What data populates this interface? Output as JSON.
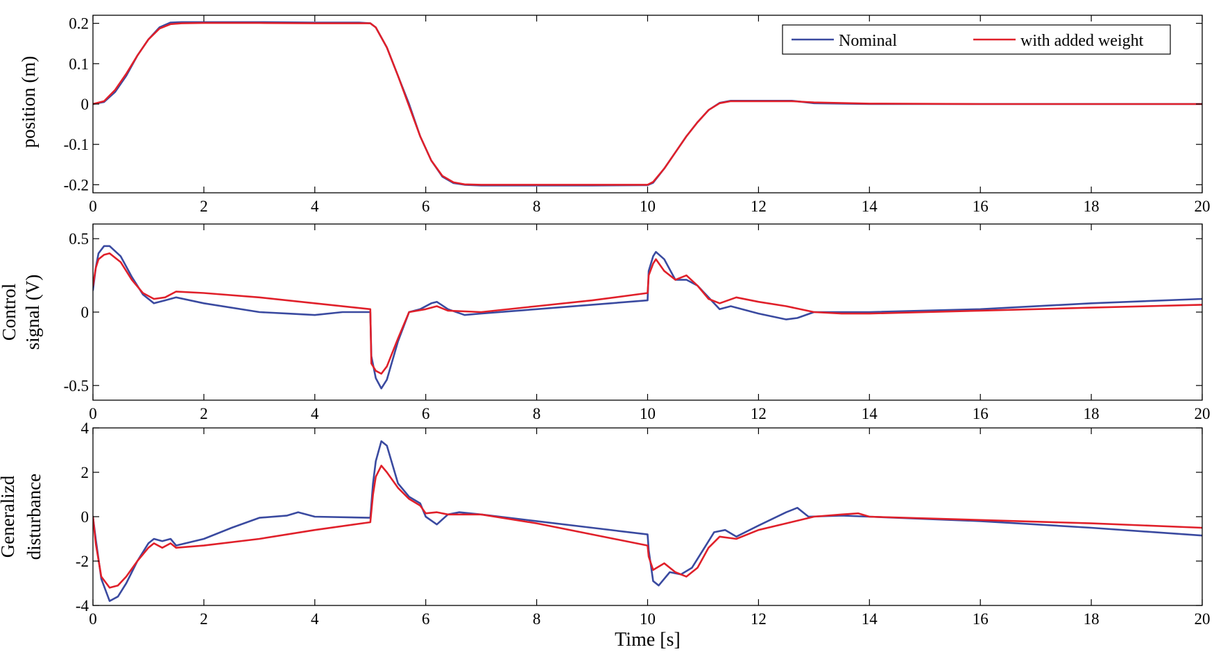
{
  "chart_data": [
    {
      "type": "line",
      "ylabel": [
        "position (m)"
      ],
      "xlabel": "",
      "xlim": [
        0,
        20
      ],
      "ylim": [
        -0.22,
        0.22
      ],
      "xticks": [
        0,
        2,
        4,
        6,
        8,
        10,
        12,
        14,
        16,
        18,
        20
      ],
      "yticks": [
        -0.2,
        -0.1,
        0,
        0.1,
        0.2
      ],
      "ytick_labels": [
        "-0.2",
        "-0.1",
        "0",
        "0.1",
        "0.2"
      ],
      "grid": false,
      "legend": {
        "placement": "top-right",
        "entries": [
          "Nominal",
          "with added weight"
        ]
      },
      "series": [
        {
          "name": "Nominal",
          "color": "#3a4aa0",
          "x": [
            0,
            0.2,
            0.4,
            0.6,
            0.8,
            1.0,
            1.2,
            1.4,
            1.6,
            2.0,
            3.0,
            4.0,
            4.8,
            5.0,
            5.1,
            5.3,
            5.5,
            5.7,
            5.9,
            6.1,
            6.3,
            6.5,
            6.7,
            7.0,
            8.0,
            9.0,
            10.0,
            10.1,
            10.3,
            10.5,
            10.7,
            10.9,
            11.1,
            11.3,
            11.5,
            11.7,
            12.0,
            12.6,
            13.0,
            14.0,
            16.0,
            18.0,
            20.0
          ],
          "y": [
            0.0,
            0.005,
            0.03,
            0.07,
            0.12,
            0.16,
            0.19,
            0.202,
            0.203,
            0.203,
            0.203,
            0.202,
            0.202,
            0.2,
            0.19,
            0.14,
            0.07,
            0.0,
            -0.08,
            -0.14,
            -0.18,
            -0.196,
            -0.2,
            -0.202,
            -0.202,
            -0.202,
            -0.201,
            -0.195,
            -0.16,
            -0.12,
            -0.08,
            -0.045,
            -0.015,
            0.003,
            0.008,
            0.008,
            0.008,
            0.008,
            0.002,
            0.0,
            0.0,
            0.0,
            0.0
          ]
        },
        {
          "name": "with added weight",
          "color": "#e0202a",
          "x": [
            0,
            0.2,
            0.4,
            0.6,
            0.8,
            1.0,
            1.2,
            1.4,
            1.6,
            2.0,
            3.0,
            4.0,
            4.8,
            5.0,
            5.1,
            5.3,
            5.5,
            5.7,
            5.9,
            6.1,
            6.3,
            6.5,
            6.7,
            7.0,
            8.0,
            9.0,
            10.0,
            10.1,
            10.3,
            10.5,
            10.7,
            10.9,
            11.1,
            11.3,
            11.5,
            11.7,
            12.0,
            12.6,
            13.0,
            14.0,
            16.0,
            18.0,
            20.0
          ],
          "y": [
            0.0,
            0.007,
            0.035,
            0.075,
            0.12,
            0.16,
            0.187,
            0.198,
            0.2,
            0.201,
            0.201,
            0.2,
            0.2,
            0.2,
            0.19,
            0.14,
            0.07,
            -0.005,
            -0.08,
            -0.14,
            -0.178,
            -0.194,
            -0.199,
            -0.2,
            -0.2,
            -0.2,
            -0.2,
            -0.193,
            -0.16,
            -0.12,
            -0.08,
            -0.045,
            -0.015,
            0.002,
            0.007,
            0.007,
            0.007,
            0.007,
            0.004,
            0.001,
            0.0,
            0.0,
            0.0
          ]
        }
      ]
    },
    {
      "type": "line",
      "ylabel": [
        "Control",
        "signal (V)"
      ],
      "xlabel": "",
      "xlim": [
        0,
        20
      ],
      "ylim": [
        -0.6,
        0.6
      ],
      "xticks": [
        0,
        2,
        4,
        6,
        8,
        10,
        12,
        14,
        16,
        18,
        20
      ],
      "yticks": [
        -0.5,
        0,
        0.5
      ],
      "ytick_labels": [
        "-0.5",
        "0",
        "0.5"
      ],
      "grid": false,
      "series": [
        {
          "name": "Nominal",
          "color": "#3a4aa0",
          "x": [
            0,
            0.05,
            0.1,
            0.2,
            0.3,
            0.5,
            0.7,
            0.9,
            1.1,
            1.3,
            1.5,
            2.0,
            3.0,
            3.5,
            4.0,
            4.5,
            5.0,
            5.02,
            5.1,
            5.2,
            5.3,
            5.5,
            5.7,
            5.9,
            6.1,
            6.2,
            6.4,
            6.7,
            7.0,
            8.0,
            9.0,
            10.0,
            10.02,
            10.1,
            10.15,
            10.3,
            10.5,
            10.7,
            10.9,
            11.1,
            11.3,
            11.5,
            12.0,
            12.5,
            12.7,
            13.0,
            14.0,
            16.0,
            18.0,
            20.0
          ],
          "y": [
            0.15,
            0.3,
            0.4,
            0.45,
            0.45,
            0.38,
            0.24,
            0.12,
            0.06,
            0.08,
            0.1,
            0.06,
            0.0,
            -0.01,
            -0.02,
            0.0,
            0.0,
            -0.3,
            -0.45,
            -0.52,
            -0.46,
            -0.2,
            0.0,
            0.02,
            0.06,
            0.07,
            0.02,
            -0.02,
            -0.01,
            0.02,
            0.05,
            0.08,
            0.28,
            0.38,
            0.41,
            0.36,
            0.22,
            0.22,
            0.18,
            0.1,
            0.02,
            0.04,
            -0.01,
            -0.05,
            -0.04,
            0.0,
            0.0,
            0.02,
            0.06,
            0.09
          ]
        },
        {
          "name": "with added weight",
          "color": "#e0202a",
          "x": [
            0,
            0.05,
            0.1,
            0.2,
            0.3,
            0.5,
            0.7,
            0.9,
            1.1,
            1.3,
            1.5,
            2.0,
            3.0,
            4.0,
            5.0,
            5.02,
            5.1,
            5.2,
            5.3,
            5.5,
            5.7,
            6.0,
            6.2,
            6.4,
            7.0,
            8.0,
            9.0,
            10.0,
            10.02,
            10.1,
            10.15,
            10.3,
            10.5,
            10.7,
            10.9,
            11.1,
            11.3,
            11.6,
            12.0,
            12.5,
            13.0,
            13.5,
            14.0,
            16.0,
            18.0,
            20.0
          ],
          "y": [
            0.18,
            0.3,
            0.36,
            0.39,
            0.4,
            0.34,
            0.22,
            0.13,
            0.09,
            0.1,
            0.14,
            0.13,
            0.1,
            0.06,
            0.02,
            -0.35,
            -0.4,
            -0.42,
            -0.37,
            -0.18,
            0.0,
            0.02,
            0.04,
            0.01,
            0.0,
            0.04,
            0.08,
            0.13,
            0.25,
            0.33,
            0.36,
            0.28,
            0.22,
            0.25,
            0.18,
            0.09,
            0.06,
            0.1,
            0.07,
            0.04,
            0.0,
            -0.01,
            -0.01,
            0.01,
            0.03,
            0.05
          ]
        }
      ]
    },
    {
      "type": "line",
      "ylabel": [
        "Generalizd",
        "disturbance"
      ],
      "xlabel": "Time [s]",
      "xlim": [
        0,
        20
      ],
      "ylim": [
        -4,
        4
      ],
      "xticks": [
        0,
        2,
        4,
        6,
        8,
        10,
        12,
        14,
        16,
        18,
        20
      ],
      "yticks": [
        -4,
        -2,
        0,
        2,
        4
      ],
      "ytick_labels": [
        "-4",
        "-2",
        "0",
        "2",
        "4"
      ],
      "grid": false,
      "series": [
        {
          "name": "Nominal",
          "color": "#3a4aa0",
          "x": [
            0,
            0.05,
            0.15,
            0.3,
            0.45,
            0.6,
            0.8,
            1.0,
            1.1,
            1.25,
            1.4,
            1.5,
            2.0,
            2.5,
            3.0,
            3.5,
            3.7,
            4.0,
            5.0,
            5.05,
            5.1,
            5.2,
            5.3,
            5.5,
            5.7,
            5.9,
            6.0,
            6.2,
            6.4,
            6.6,
            7.0,
            8.0,
            9.0,
            10.0,
            10.02,
            10.1,
            10.2,
            10.4,
            10.6,
            10.8,
            11.0,
            11.2,
            11.4,
            11.6,
            12.0,
            12.5,
            12.7,
            12.9,
            13.5,
            14.0,
            16.0,
            18.0,
            20.0
          ],
          "y": [
            0.0,
            -1.0,
            -2.8,
            -3.8,
            -3.6,
            -3.0,
            -2.0,
            -1.2,
            -1.0,
            -1.1,
            -1.0,
            -1.3,
            -1.0,
            -0.5,
            -0.05,
            0.05,
            0.2,
            0.0,
            -0.05,
            1.5,
            2.5,
            3.4,
            3.2,
            1.5,
            0.9,
            0.6,
            0.0,
            -0.35,
            0.1,
            0.2,
            0.1,
            -0.2,
            -0.5,
            -0.8,
            -1.5,
            -2.9,
            -3.1,
            -2.5,
            -2.6,
            -2.3,
            -1.5,
            -0.7,
            -0.6,
            -0.9,
            -0.4,
            0.2,
            0.4,
            0.0,
            0.05,
            0.0,
            -0.2,
            -0.5,
            -0.85
          ]
        },
        {
          "name": "with added weight",
          "color": "#e0202a",
          "x": [
            0,
            0.05,
            0.15,
            0.3,
            0.45,
            0.6,
            0.8,
            1.0,
            1.1,
            1.25,
            1.4,
            1.5,
            2.0,
            3.0,
            4.0,
            5.0,
            5.05,
            5.1,
            5.2,
            5.3,
            5.5,
            5.7,
            5.9,
            6.0,
            6.2,
            6.4,
            7.0,
            8.0,
            9.0,
            10.0,
            10.02,
            10.1,
            10.3,
            10.5,
            10.7,
            10.9,
            11.1,
            11.3,
            11.6,
            12.0,
            12.5,
            13.0,
            13.5,
            13.8,
            14.0,
            16.0,
            18.0,
            20.0
          ],
          "y": [
            0.0,
            -1.2,
            -2.7,
            -3.2,
            -3.1,
            -2.7,
            -2.0,
            -1.4,
            -1.2,
            -1.4,
            -1.2,
            -1.4,
            -1.3,
            -1.0,
            -0.6,
            -0.25,
            1.0,
            1.8,
            2.3,
            2.0,
            1.3,
            0.8,
            0.5,
            0.15,
            0.2,
            0.1,
            0.1,
            -0.3,
            -0.8,
            -1.3,
            -1.8,
            -2.4,
            -2.1,
            -2.5,
            -2.7,
            -2.3,
            -1.4,
            -0.9,
            -1.0,
            -0.6,
            -0.3,
            0.0,
            0.1,
            0.15,
            0.0,
            -0.15,
            -0.3,
            -0.5
          ]
        }
      ]
    }
  ]
}
